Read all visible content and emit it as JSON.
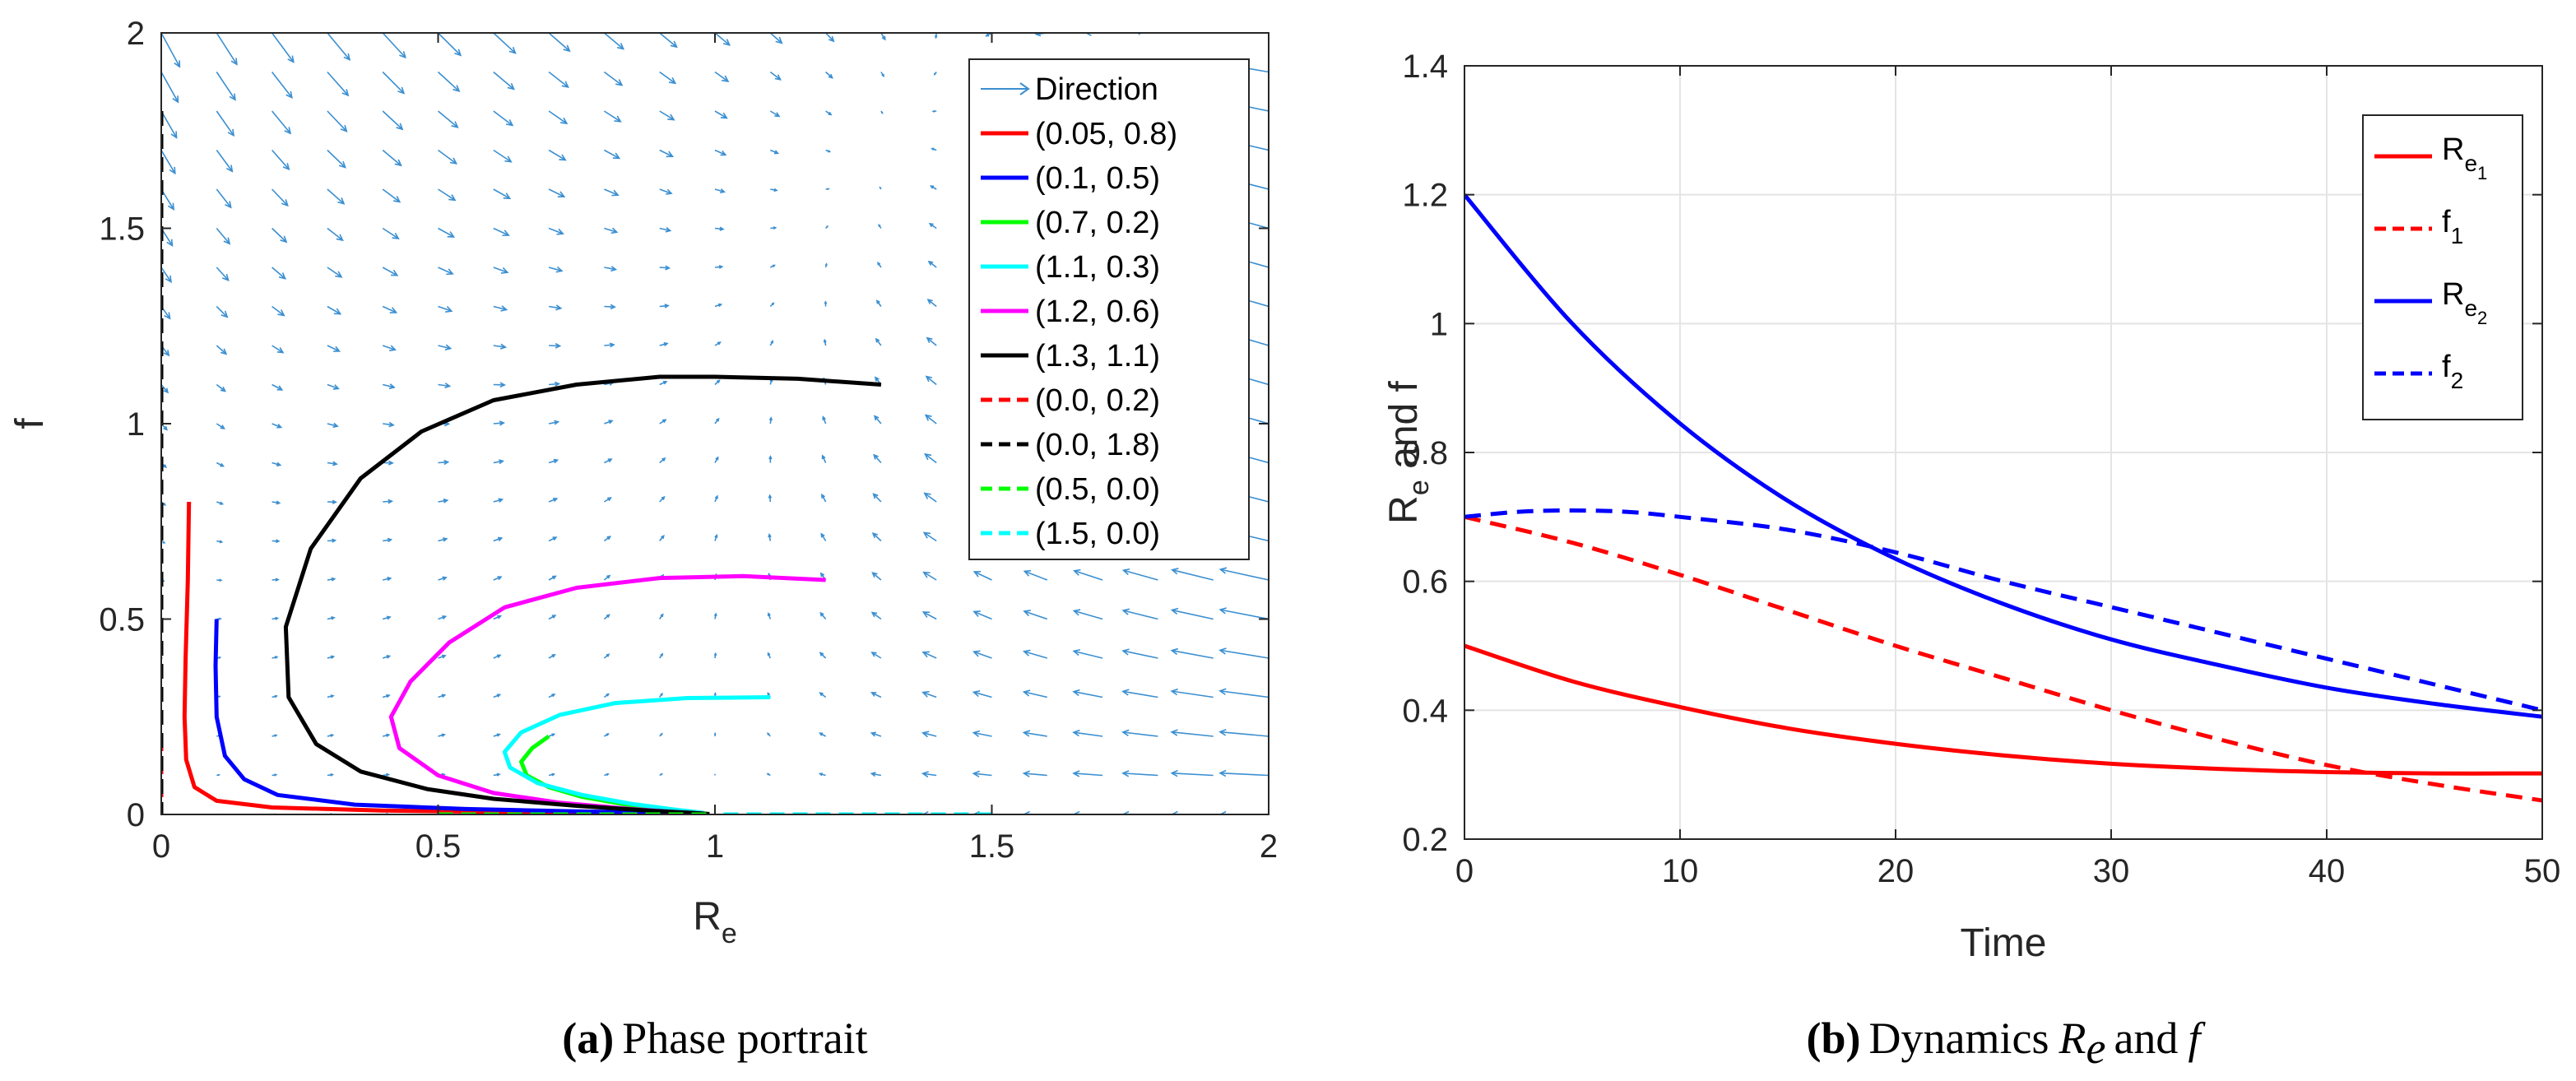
{
  "chart_data": [
    {
      "type": "line",
      "title": "",
      "caption": {
        "label": "(a)",
        "text": "Phase portrait"
      },
      "xlabel_base": "R",
      "xlabel_sub": "e",
      "ylabel": "f",
      "xlim": [
        0,
        2
      ],
      "ylim": [
        0,
        2
      ],
      "xticks": [
        "0",
        "0.5",
        "1",
        "1.5",
        "2"
      ],
      "yticks": [
        "0",
        "0.5",
        "1",
        "1.5",
        "2"
      ],
      "grid": false,
      "legend_position": "top-right",
      "quiver": {
        "name": "Direction",
        "color": "#3b8fd1"
      },
      "series": [
        {
          "name": "(0.05, 0.8)",
          "color": "#ff0000",
          "dash": false,
          "points": [
            [
              0.05,
              0.8
            ],
            [
              0.048,
              0.6
            ],
            [
              0.044,
              0.4
            ],
            [
              0.042,
              0.25
            ],
            [
              0.045,
              0.14
            ],
            [
              0.06,
              0.07
            ],
            [
              0.1,
              0.035
            ],
            [
              0.2,
              0.018
            ],
            [
              0.4,
              0.01
            ],
            [
              0.6,
              0.007
            ],
            [
              0.8,
              0.004
            ],
            [
              0.95,
              0.002
            ]
          ]
        },
        {
          "name": "(0.1, 0.5)",
          "color": "#0000ff",
          "dash": false,
          "points": [
            [
              0.1,
              0.5
            ],
            [
              0.098,
              0.38
            ],
            [
              0.1,
              0.25
            ],
            [
              0.115,
              0.15
            ],
            [
              0.15,
              0.09
            ],
            [
              0.21,
              0.05
            ],
            [
              0.35,
              0.025
            ],
            [
              0.55,
              0.014
            ],
            [
              0.75,
              0.008
            ],
            [
              0.92,
              0.004
            ],
            [
              0.98,
              0.002
            ]
          ]
        },
        {
          "name": "(0.7, 0.2)",
          "color": "#00ff00",
          "dash": false,
          "points": [
            [
              0.7,
              0.2
            ],
            [
              0.67,
              0.17
            ],
            [
              0.65,
              0.135
            ],
            [
              0.66,
              0.1
            ],
            [
              0.7,
              0.07
            ],
            [
              0.76,
              0.045
            ],
            [
              0.84,
              0.025
            ],
            [
              0.91,
              0.012
            ],
            [
              0.96,
              0.005
            ],
            [
              0.99,
              0.001
            ]
          ]
        },
        {
          "name": "(1.1, 0.3)",
          "color": "#00ffff",
          "dash": false,
          "points": [
            [
              1.1,
              0.3
            ],
            [
              0.95,
              0.298
            ],
            [
              0.82,
              0.285
            ],
            [
              0.72,
              0.255
            ],
            [
              0.65,
              0.21
            ],
            [
              0.62,
              0.16
            ],
            [
              0.63,
              0.12
            ],
            [
              0.68,
              0.08
            ],
            [
              0.76,
              0.05
            ],
            [
              0.85,
              0.027
            ],
            [
              0.93,
              0.012
            ],
            [
              0.98,
              0.004
            ]
          ]
        },
        {
          "name": "(1.2, 0.6)",
          "color": "#ff00ff",
          "dash": false,
          "points": [
            [
              1.2,
              0.6
            ],
            [
              1.05,
              0.61
            ],
            [
              0.9,
              0.605
            ],
            [
              0.75,
              0.58
            ],
            [
              0.62,
              0.53
            ],
            [
              0.52,
              0.44
            ],
            [
              0.45,
              0.34
            ],
            [
              0.415,
              0.25
            ],
            [
              0.43,
              0.17
            ],
            [
              0.5,
              0.1
            ],
            [
              0.6,
              0.055
            ],
            [
              0.72,
              0.03
            ],
            [
              0.84,
              0.015
            ],
            [
              0.93,
              0.006
            ],
            [
              0.98,
              0.002
            ]
          ]
        },
        {
          "name": "(1.3, 1.1)",
          "color": "#000000",
          "dash": false,
          "points": [
            [
              1.3,
              1.1
            ],
            [
              1.15,
              1.115
            ],
            [
              1.0,
              1.12
            ],
            [
              0.9,
              1.12
            ],
            [
              0.75,
              1.1
            ],
            [
              0.6,
              1.06
            ],
            [
              0.47,
              0.98
            ],
            [
              0.36,
              0.86
            ],
            [
              0.27,
              0.68
            ],
            [
              0.225,
              0.48
            ],
            [
              0.23,
              0.3
            ],
            [
              0.28,
              0.18
            ],
            [
              0.36,
              0.11
            ],
            [
              0.48,
              0.065
            ],
            [
              0.6,
              0.04
            ],
            [
              0.75,
              0.022
            ],
            [
              0.88,
              0.01
            ],
            [
              0.96,
              0.004
            ],
            [
              0.99,
              0.001
            ]
          ]
        },
        {
          "name": "(0.0, 0.2)",
          "color": "#ff0000",
          "dash": true,
          "points": [
            [
              0.0,
              0.2
            ],
            [
              0.0,
              0.0
            ]
          ]
        },
        {
          "name": "(0.0, 1.8)",
          "color": "#000000",
          "dash": true,
          "points": [
            [
              0.0,
              1.8
            ],
            [
              0.0,
              0.0
            ]
          ]
        },
        {
          "name": "(0.5, 0.0)",
          "color": "#00ff00",
          "dash": true,
          "points": [
            [
              0.5,
              0.0
            ],
            [
              1.0,
              0.0
            ]
          ]
        },
        {
          "name": "(1.5, 0.0)",
          "color": "#00ffff",
          "dash": true,
          "points": [
            [
              1.5,
              0.0
            ],
            [
              1.0,
              0.0
            ]
          ]
        }
      ]
    },
    {
      "type": "line",
      "title": "",
      "caption": {
        "label": "(b)",
        "text_before": "Dynamics",
        "var1": "R",
        "var1_sub": "e",
        "text_and": "and",
        "var2": "f"
      },
      "xlabel": "Time",
      "ylabel_base": "R",
      "ylabel_sub": "e",
      "ylabel_rest": " and f",
      "xlim": [
        0,
        50
      ],
      "ylim": [
        0.2,
        1.4
      ],
      "xticks": [
        "0",
        "10",
        "20",
        "30",
        "40",
        "50"
      ],
      "yticks": [
        "0.2",
        "0.4",
        "0.6",
        "0.8",
        "1",
        "1.2",
        "1.4"
      ],
      "grid": true,
      "legend_position": "top-right",
      "series": [
        {
          "name_base": "R",
          "name_sub": "e",
          "name_subsub": "1",
          "color": "#ff0000",
          "dash": false,
          "x": [
            0,
            5,
            10,
            15,
            20,
            25,
            30,
            35,
            40,
            45,
            50
          ],
          "y": [
            0.5,
            0.445,
            0.405,
            0.372,
            0.348,
            0.33,
            0.317,
            0.309,
            0.304,
            0.302,
            0.302
          ]
        },
        {
          "name_base": "f",
          "name_sub": "1",
          "color": "#ff0000",
          "dash": true,
          "x": [
            0,
            5,
            10,
            15,
            20,
            25,
            30,
            35,
            40,
            45,
            50
          ],
          "y": [
            0.7,
            0.66,
            0.61,
            0.555,
            0.5,
            0.45,
            0.4,
            0.355,
            0.315,
            0.285,
            0.26
          ]
        },
        {
          "name_base": "R",
          "name_sub": "e",
          "name_subsub": "2",
          "color": "#0000ff",
          "dash": false,
          "x": [
            0,
            5,
            10,
            15,
            20,
            25,
            30,
            35,
            40,
            45,
            50
          ],
          "y": [
            1.2,
            1.0,
            0.845,
            0.725,
            0.635,
            0.565,
            0.51,
            0.47,
            0.435,
            0.41,
            0.39
          ]
        },
        {
          "name_base": "f",
          "name_sub": "2",
          "color": "#0000ff",
          "dash": true,
          "x": [
            0,
            2.5,
            5,
            7.5,
            10,
            15,
            20,
            25,
            30,
            35,
            40,
            45,
            50
          ],
          "y": [
            0.7,
            0.708,
            0.71,
            0.708,
            0.7,
            0.68,
            0.645,
            0.6,
            0.56,
            0.52,
            0.48,
            0.44,
            0.4
          ]
        }
      ]
    }
  ]
}
